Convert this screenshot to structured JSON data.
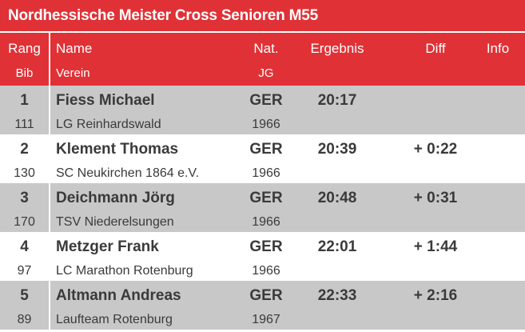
{
  "title": "Nordhessische Meister Cross Senioren M55",
  "header": {
    "rank": "Rang",
    "bib": "Bib",
    "name": "Name",
    "club": "Verein",
    "nat": "Nat.",
    "year": "JG",
    "result": "Ergebnis",
    "diff": "Diff",
    "info": "Info"
  },
  "rows": [
    {
      "rank": "1",
      "bib": "111",
      "name": "Fiess Michael",
      "club": "LG Reinhardswald",
      "nat": "GER",
      "year": "1966",
      "result": "20:17",
      "diff": ""
    },
    {
      "rank": "2",
      "bib": "130",
      "name": "Klement Thomas",
      "club": "SC Neukirchen 1864 e.V.",
      "nat": "GER",
      "year": "1966",
      "result": "20:39",
      "diff": "+ 0:22"
    },
    {
      "rank": "3",
      "bib": "170",
      "name": "Deichmann Jörg",
      "club": "TSV Niederelsungen",
      "nat": "GER",
      "year": "1966",
      "result": "20:48",
      "diff": "+ 0:31"
    },
    {
      "rank": "4",
      "bib": "97",
      "name": "Metzger Frank",
      "club": "LC Marathon Rotenburg",
      "nat": "GER",
      "year": "1966",
      "result": "22:01",
      "diff": "+ 1:44"
    },
    {
      "rank": "5",
      "bib": "89",
      "name": "Altmann Andreas",
      "club": "Laufteam Rotenburg",
      "nat": "GER",
      "year": "1967",
      "result": "22:33",
      "diff": "+ 2:16"
    }
  ]
}
